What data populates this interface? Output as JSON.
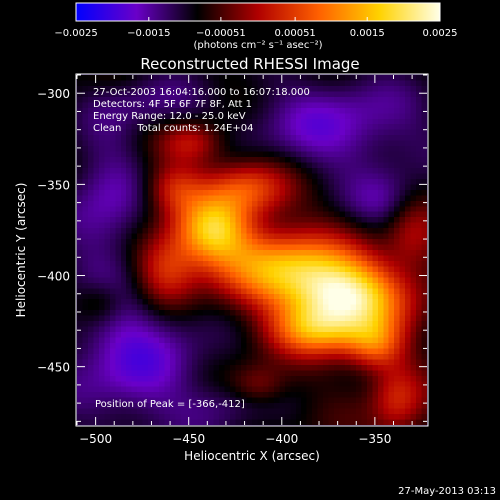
{
  "chart_data": {
    "type": "heatmap",
    "title": "Reconstructed RHESSI Image",
    "xlabel": "Heliocentric X (arcsec)",
    "ylabel": "Heliocentric Y (arcsec)",
    "xlim": [
      -510,
      -322
    ],
    "ylim": [
      -482,
      -290
    ],
    "x_ticks": [
      -500,
      -450,
      -400,
      -350
    ],
    "y_ticks": [
      -300,
      -350,
      -400,
      -450
    ],
    "x_tick_labels": [
      "−500",
      "−450",
      "−400",
      "−350"
    ],
    "y_tick_labels": [
      "−300",
      "−350",
      "−400",
      "−450"
    ],
    "colorbar": {
      "range": [
        -0.0025,
        0.0025
      ],
      "ticks": [
        -0.0025,
        -0.0015,
        -0.00051,
        0.00051,
        0.0015,
        0.0025
      ],
      "tick_labels": [
        "−0.0025",
        "−0.0015",
        "−0.00051",
        "0.00051",
        "0.0015",
        "0.0025"
      ],
      "unit": "(photons cm⁻² s⁻¹ asec⁻²)",
      "colors": [
        "#0000ff",
        "#6a00c8",
        "#000000",
        "#b00000",
        "#ff6000",
        "#ffd200",
        "#ffffe8"
      ]
    },
    "annotations": [
      "27-Oct-2003 16:04:16.000 to 16:07:18.000",
      "Detectors: 4F 5F 6F 7F 8F, Att 1",
      "Energy Range: 12.0 - 25.0 keV",
      "Clean     Total counts: 1.24E+04",
      "Position of Peak = [-366,-412]"
    ],
    "peak": {
      "x": -366,
      "y": -412
    },
    "emission_blobs": [
      {
        "x": -366,
        "y": -412,
        "sx": 22,
        "sy": 14,
        "value": 0.0025
      },
      {
        "x": -400,
        "y": -395,
        "sx": 26,
        "sy": 14,
        "value": 0.0017
      },
      {
        "x": -437,
        "y": -375,
        "sx": 14,
        "sy": 13,
        "value": 0.0019
      },
      {
        "x": -418,
        "y": -352,
        "sx": 16,
        "sy": 11,
        "value": 0.0011
      },
      {
        "x": -462,
        "y": -397,
        "sx": 12,
        "sy": 14,
        "value": 0.001
      },
      {
        "x": -458,
        "y": -352,
        "sx": 11,
        "sy": 10,
        "value": 0.0007
      },
      {
        "x": -448,
        "y": -327,
        "sx": 12,
        "sy": 8,
        "value": 0.0006
      },
      {
        "x": -382,
        "y": -430,
        "sx": 18,
        "sy": 10,
        "value": 0.0012
      },
      {
        "x": -350,
        "y": -438,
        "sx": 11,
        "sy": 10,
        "value": 0.001
      },
      {
        "x": -338,
        "y": -468,
        "sx": 10,
        "sy": 14,
        "value": 0.0007
      },
      {
        "x": -498,
        "y": -415,
        "sx": 10,
        "sy": 9,
        "value": 0.0004
      },
      {
        "x": -412,
        "y": -460,
        "sx": 10,
        "sy": 8,
        "value": 0.0003
      },
      {
        "x": -330,
        "y": -378,
        "sx": 10,
        "sy": 14,
        "value": 0.0004
      }
    ],
    "background_blobs": [
      {
        "x": -480,
        "y": -445,
        "sx": 28,
        "sy": 30,
        "value": -0.0013
      },
      {
        "x": -495,
        "y": -360,
        "sx": 16,
        "sy": 30,
        "value": -0.0011
      },
      {
        "x": -370,
        "y": -318,
        "sx": 36,
        "sy": 20,
        "value": -0.0012
      },
      {
        "x": -345,
        "y": -360,
        "sx": 14,
        "sy": 12,
        "value": -0.0009
      },
      {
        "x": -430,
        "y": -472,
        "sx": 16,
        "sy": 10,
        "value": -0.0007
      },
      {
        "x": -470,
        "y": -305,
        "sx": 20,
        "sy": 12,
        "value": -0.0008
      }
    ]
  },
  "footer": {
    "timestamp": "27-May-2013 03:13"
  }
}
